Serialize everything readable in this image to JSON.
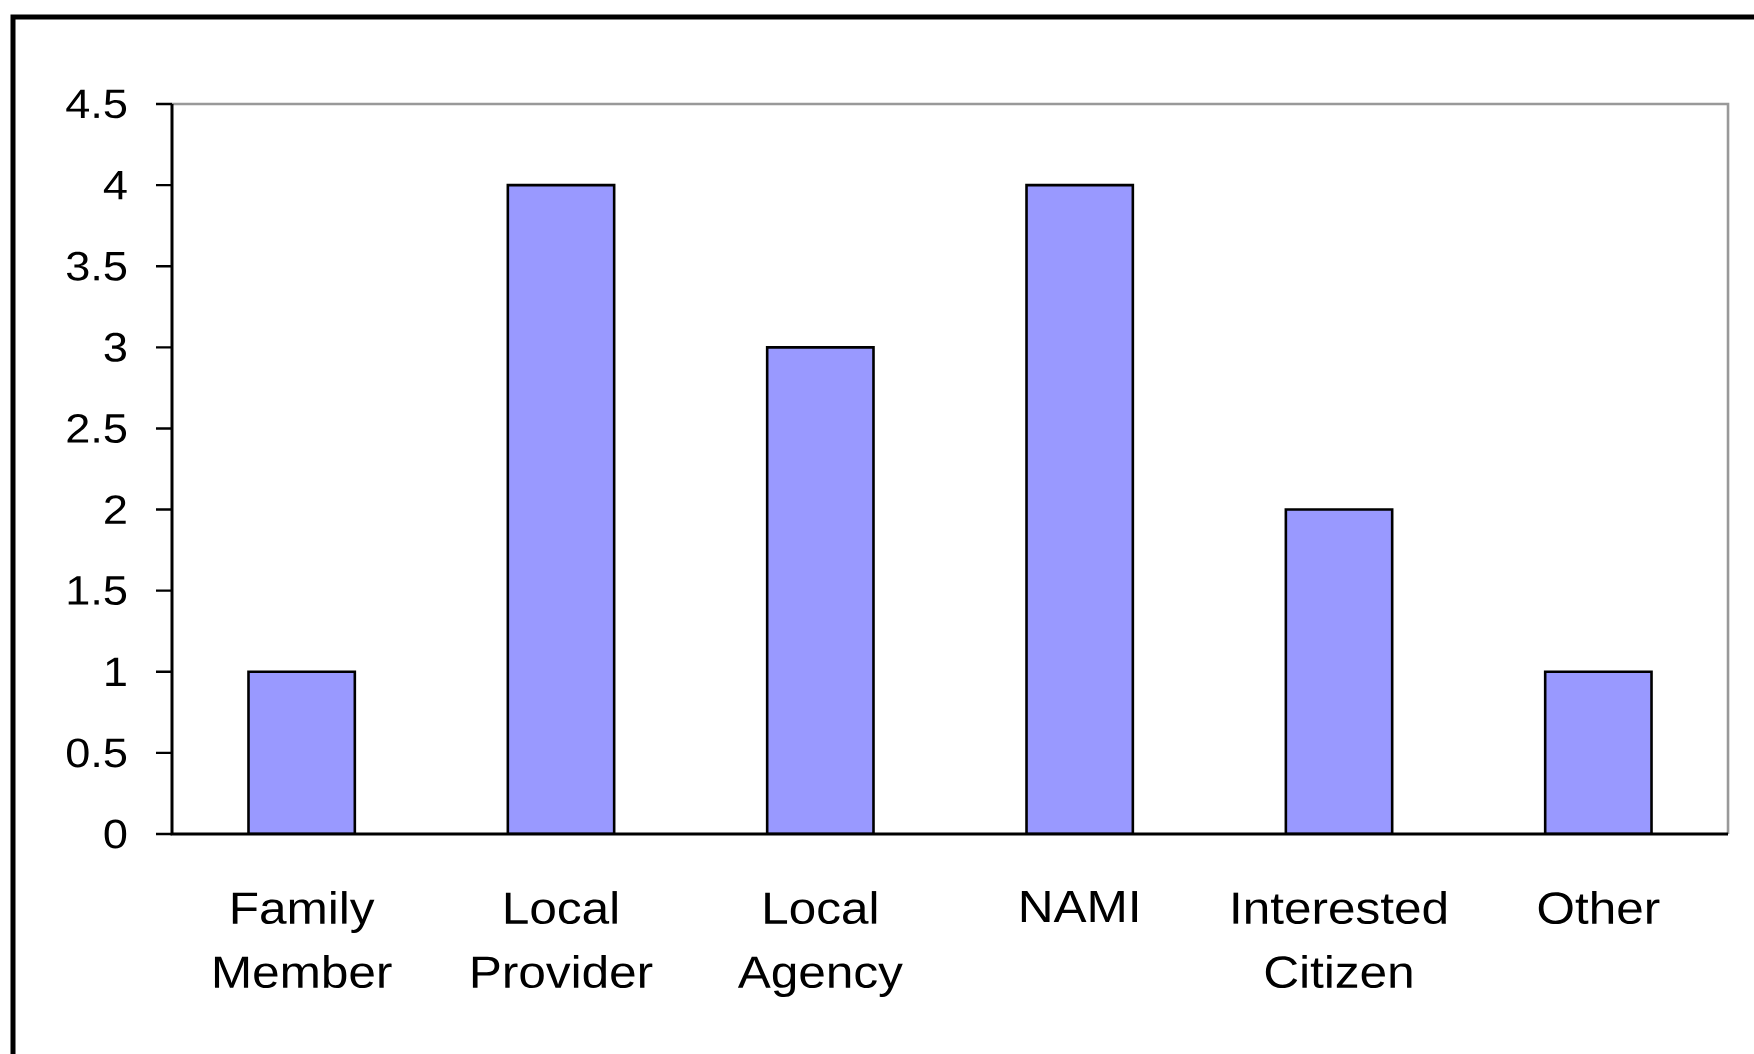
{
  "chart_data": {
    "type": "bar",
    "categories": [
      "Family Member",
      "Local Provider",
      "Local Agency",
      "NAMI",
      "Interested Citizen",
      "Other"
    ],
    "values": [
      1,
      4,
      3,
      4,
      2,
      1
    ],
    "color": "#9999ff",
    "ylim": [
      0,
      4.5
    ],
    "yticks": [
      0,
      0.5,
      1,
      1.5,
      2,
      2.5,
      3,
      3.5,
      4,
      4.5
    ]
  }
}
